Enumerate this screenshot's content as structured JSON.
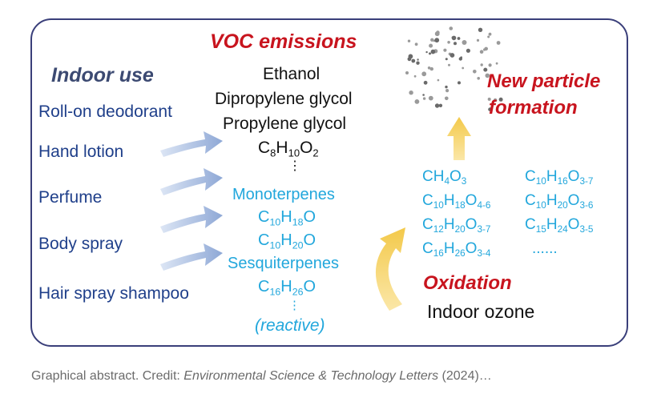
{
  "headers": {
    "indoor_use": "Indoor use",
    "voc_emissions": "VOC emissions",
    "new_particle_1": "New particle",
    "new_particle_2": "formation",
    "oxidation": "Oxidation"
  },
  "products": [
    "Roll-on deodorant",
    "Hand lotion",
    "Perfume",
    "Body spray",
    "Hair spray shampoo"
  ],
  "voc_compounds": {
    "ethanol": "Ethanol",
    "dipropylene": "Dipropylene glycol",
    "propylene": "Propylene glycol",
    "c8": {
      "C": "8",
      "H": "10",
      "O": "2"
    }
  },
  "reactive": {
    "monoterpenes": "Monoterpenes",
    "m1": {
      "C": "10",
      "H": "18",
      "O": ""
    },
    "m2": {
      "C": "10",
      "H": "20",
      "O": ""
    },
    "sesquiterpenes": "Sesquiterpenes",
    "s1": {
      "C": "16",
      "H": "26",
      "O": ""
    },
    "reactive_label": "(reactive)",
    "ellipsis": "⋮"
  },
  "oxidation_products": {
    "col1": [
      {
        "C": "",
        "H": "4",
        "O": "3"
      },
      {
        "C": "10",
        "H": "18",
        "O": "4-6"
      },
      {
        "C": "12",
        "H": "20",
        "O": "3-7"
      },
      {
        "C": "16",
        "H": "26",
        "O": "3-4"
      }
    ],
    "col2": [
      {
        "C": "10",
        "H": "16",
        "O": "3-7"
      },
      {
        "C": "10",
        "H": "20",
        "O": "3-6"
      },
      {
        "C": "15",
        "H": "24",
        "O": "3-5"
      }
    ],
    "more": "......"
  },
  "indoor_ozone": "Indoor ozone",
  "caption": {
    "prefix": "Graphical abstract. Credit: ",
    "journal": "Environmental Science & Technology Letters",
    "suffix": " (2024)…"
  },
  "colors": {
    "red": "#c8141e",
    "navy": "#1f3f8a",
    "cyan": "#22a7dc",
    "arrow_blue": "#9ab0d8",
    "arrow_yellow": "#f3cd5a"
  }
}
